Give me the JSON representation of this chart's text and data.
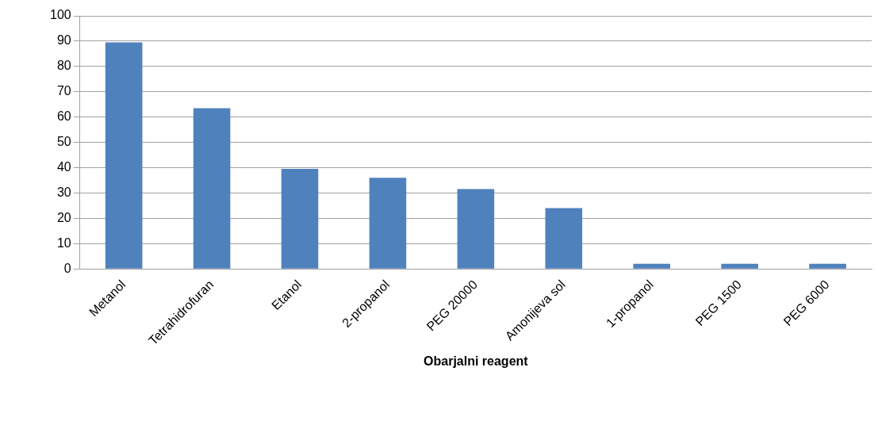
{
  "chart_data": {
    "type": "bar",
    "xlabel": "Obarjalni reagent",
    "categories": [
      "Metanol",
      "Tetrahidrofuran",
      "Etanol",
      "2-propanol",
      "PEG 20000",
      "Amonijeva sol",
      "1-propanol",
      "PEG 1500",
      "PEG 6000"
    ],
    "values": [
      89.5,
      63.5,
      39.5,
      36,
      31.5,
      24,
      2,
      2,
      2
    ],
    "color": "#4f81bd",
    "ylim": [
      0,
      100
    ],
    "yticks": [
      0,
      10,
      20,
      30,
      40,
      50,
      60,
      70,
      80,
      90,
      100
    ],
    "grid": "y",
    "legend": false
  }
}
